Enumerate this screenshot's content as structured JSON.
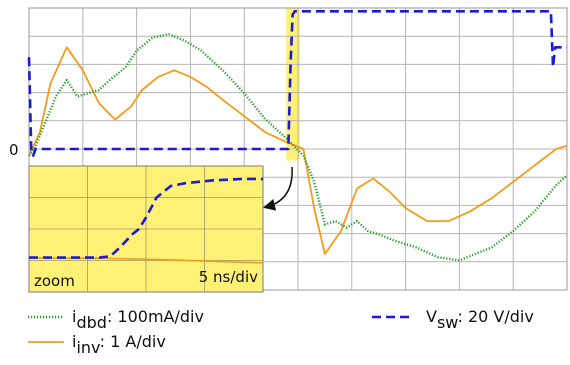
{
  "chart_data": {
    "type": "line",
    "title": "",
    "xlabel": "",
    "ylabel": "",
    "zero_label": "0",
    "x_unit": "div",
    "y_unit": "div",
    "xlim": [
      0,
      10
    ],
    "ylim": [
      -4.3,
      4.3
    ],
    "grid": true,
    "series": [
      {
        "name": "dbd",
        "label": "i",
        "sub": "dbd",
        "value_text": ": 100mA/div",
        "color": "#22a022",
        "style": "dotted",
        "x": [
          0,
          0.1,
          0.3,
          0.5,
          0.7,
          0.9,
          1.1,
          1.3,
          1.5,
          1.8,
          2.0,
          2.3,
          2.6,
          2.9,
          3.2,
          3.6,
          4.0,
          4.4,
          4.8,
          5.1,
          5.3,
          5.5,
          5.7,
          5.9,
          6.1,
          6.3,
          6.5,
          6.8,
          7.2,
          7.6,
          8.0,
          8.3,
          8.6,
          9.0,
          9.4,
          9.8,
          10.0
        ],
        "y": [
          -0.2,
          0.0,
          0.8,
          1.6,
          2.1,
          1.6,
          1.7,
          1.8,
          2.1,
          2.5,
          3.0,
          3.4,
          3.5,
          3.3,
          3.0,
          2.4,
          1.7,
          0.9,
          0.3,
          -0.2,
          -1.0,
          -2.3,
          -2.2,
          -2.4,
          -2.2,
          -2.5,
          -2.6,
          -2.8,
          -3.0,
          -3.3,
          -3.4,
          -3.2,
          -3.0,
          -2.5,
          -1.9,
          -1.1,
          -0.8
        ]
      },
      {
        "name": "inv",
        "label": "i",
        "sub": "inv",
        "value_text": ": 1 A/div",
        "color": "#f39c1a",
        "style": "solid",
        "x": [
          0,
          0.2,
          0.4,
          0.7,
          1.0,
          1.3,
          1.6,
          1.9,
          2.1,
          2.4,
          2.7,
          3.0,
          3.3,
          3.6,
          4.0,
          4.4,
          4.8,
          5.1,
          5.3,
          5.5,
          5.8,
          6.1,
          6.4,
          6.7,
          7.0,
          7.4,
          7.8,
          8.2,
          8.6,
          9.0,
          9.4,
          9.8,
          10.0
        ],
        "y": [
          -0.2,
          0.5,
          2.0,
          3.1,
          2.4,
          1.4,
          0.9,
          1.3,
          1.8,
          2.2,
          2.4,
          2.2,
          1.9,
          1.5,
          1.0,
          0.5,
          0.2,
          0.0,
          -1.8,
          -3.2,
          -2.5,
          -1.2,
          -0.9,
          -1.3,
          -1.8,
          -2.2,
          -2.2,
          -1.9,
          -1.5,
          -1.0,
          -0.5,
          0.0,
          0.1
        ]
      },
      {
        "name": "sw",
        "label": "V",
        "sub": "sw",
        "value_text": ": 20 V/div",
        "color": "#1a1adb",
        "style": "dashed",
        "x": [
          0,
          0.04,
          0.08,
          0.12,
          0.3,
          1.0,
          2.0,
          3.0,
          4.0,
          4.82,
          4.86,
          4.9,
          4.94,
          4.98,
          5.1,
          6.0,
          7.0,
          8.0,
          9.0,
          9.7,
          9.74,
          9.78,
          10.0
        ],
        "y": [
          2.8,
          0.0,
          -0.2,
          0.0,
          0.0,
          0.0,
          0.0,
          0.0,
          0.0,
          0.0,
          2.5,
          4.1,
          4.2,
          4.2,
          4.2,
          4.2,
          4.2,
          4.2,
          4.2,
          4.2,
          2.5,
          3.1,
          3.1
        ]
      }
    ],
    "highlight_band": {
      "x": [
        4.78,
        5.04
      ],
      "color": "#fff176"
    },
    "inset": {
      "label": "zoom",
      "scale_text": "5 ns/div",
      "background": "#fff176",
      "series": [
        {
          "name": "sw",
          "color": "#1a1adb",
          "style": "dashed",
          "x": [
            0,
            0.5,
            1.0,
            1.5,
            2.0,
            2.3,
            2.6,
            2.9,
            3.1,
            3.3,
            3.6,
            4.0,
            4.4,
            4.8,
            5.2,
            5.6,
            6.0,
            6.4,
            6.6
          ],
          "y": [
            -1.0,
            -1.0,
            -1.0,
            -1.0,
            -1.0,
            -0.95,
            -0.6,
            -0.2,
            0.0,
            0.4,
            1.1,
            1.5,
            1.6,
            1.65,
            1.7,
            1.72,
            1.75,
            1.75,
            1.75
          ]
        },
        {
          "name": "inv",
          "color": "#f39c1a",
          "style": "solid",
          "x": [
            0,
            1.0,
            2.0,
            3.0,
            4.0,
            5.0,
            6.0,
            6.6
          ],
          "y": [
            -1.0,
            -1.02,
            -1.02,
            -1.05,
            -1.08,
            -1.12,
            -1.16,
            -1.18
          ]
        }
      ],
      "xlim": [
        0,
        6.6
      ],
      "ylim": [
        -2.2,
        2.2
      ]
    }
  }
}
